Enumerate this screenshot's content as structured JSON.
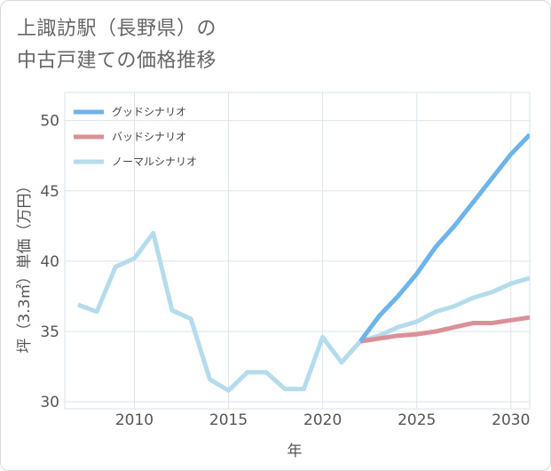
{
  "title_lines": [
    "上諏訪駅（長野県）の",
    "中古戸建ての価格推移"
  ],
  "chart_data": {
    "type": "line",
    "xlabel": "年",
    "ylabel": "坪（3.3㎡）単価（万円）",
    "xlim": [
      2006.3,
      2031
    ],
    "ylim": [
      29.5,
      52
    ],
    "x_ticks": [
      2010,
      2015,
      2020,
      2025,
      2030
    ],
    "y_ticks": [
      30,
      35,
      40,
      45,
      50
    ],
    "grid": true,
    "legend_position": "top-left",
    "series": [
      {
        "name": "グッドシナリオ",
        "color": "#6cb4ea",
        "x": [
          2022,
          2023,
          2024,
          2025,
          2026,
          2027,
          2028,
          2029,
          2030,
          2031
        ],
        "values": [
          34.3,
          36.1,
          37.5,
          39.1,
          41.0,
          42.5,
          44.2,
          45.9,
          47.6,
          49.0
        ]
      },
      {
        "name": "バッドシナリオ",
        "color": "#db8f97",
        "x": [
          2022,
          2023,
          2024,
          2025,
          2026,
          2027,
          2028,
          2029,
          2030,
          2031
        ],
        "values": [
          34.3,
          34.5,
          34.7,
          34.8,
          35.0,
          35.3,
          35.6,
          35.6,
          35.8,
          36.0
        ]
      },
      {
        "name": "ノーマルシナリオ",
        "color": "#b4dcec",
        "x": [
          2007,
          2008,
          2009,
          2010,
          2011,
          2012,
          2013,
          2014,
          2015,
          2016,
          2017,
          2018,
          2019,
          2020,
          2021,
          2022,
          2023,
          2024,
          2025,
          2026,
          2027,
          2028,
          2029,
          2030,
          2031
        ],
        "values": [
          36.9,
          36.4,
          39.6,
          40.2,
          42.0,
          36.5,
          35.9,
          31.6,
          30.8,
          32.1,
          32.1,
          30.9,
          30.9,
          34.6,
          32.8,
          34.3,
          34.7,
          35.3,
          35.7,
          36.4,
          36.8,
          37.4,
          37.8,
          38.4,
          38.8
        ]
      }
    ]
  }
}
